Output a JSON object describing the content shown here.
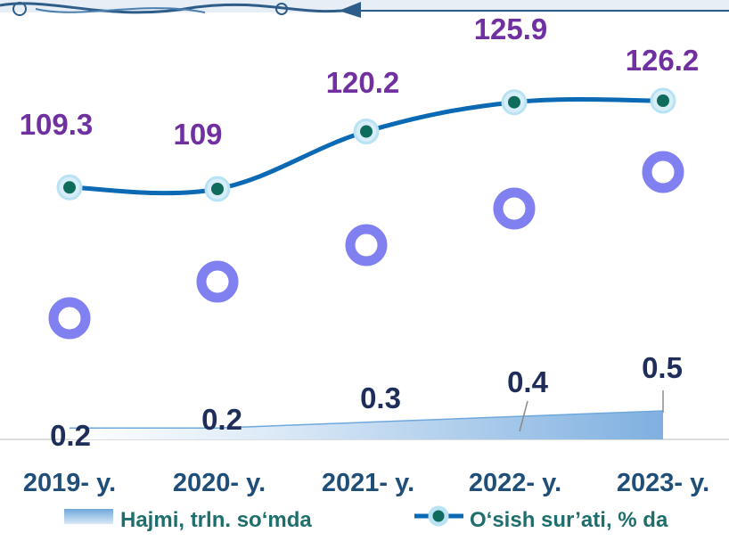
{
  "chart_data": {
    "type": "line",
    "categories": [
      "2019- y.",
      "2020- y.",
      "2021- y.",
      "2022- y.",
      "2023- y."
    ],
    "series": [
      {
        "name": "Hajmi, trln. so‘mda",
        "kind": "area",
        "values": [
          0.2,
          0.2,
          0.3,
          0.4,
          0.5
        ],
        "color": "#9dc3e6"
      },
      {
        "name": "O‘sish sur’ati, % da",
        "kind": "line",
        "values": [
          109.3,
          109,
          120.2,
          125.9,
          126.2
        ],
        "color": "#0b6ab3",
        "marker_color": "#0f6b5c"
      }
    ],
    "extra_markers": {
      "values": [
        1,
        2,
        3,
        4,
        5
      ],
      "color": "#8080f0"
    },
    "legend_position": "bottom",
    "grid": false,
    "colors": {
      "growth_label": "#7030a0",
      "volume_label": "#1f2d5a",
      "tick": "#1f4e79",
      "legend_text": "#1f6e6e"
    }
  }
}
